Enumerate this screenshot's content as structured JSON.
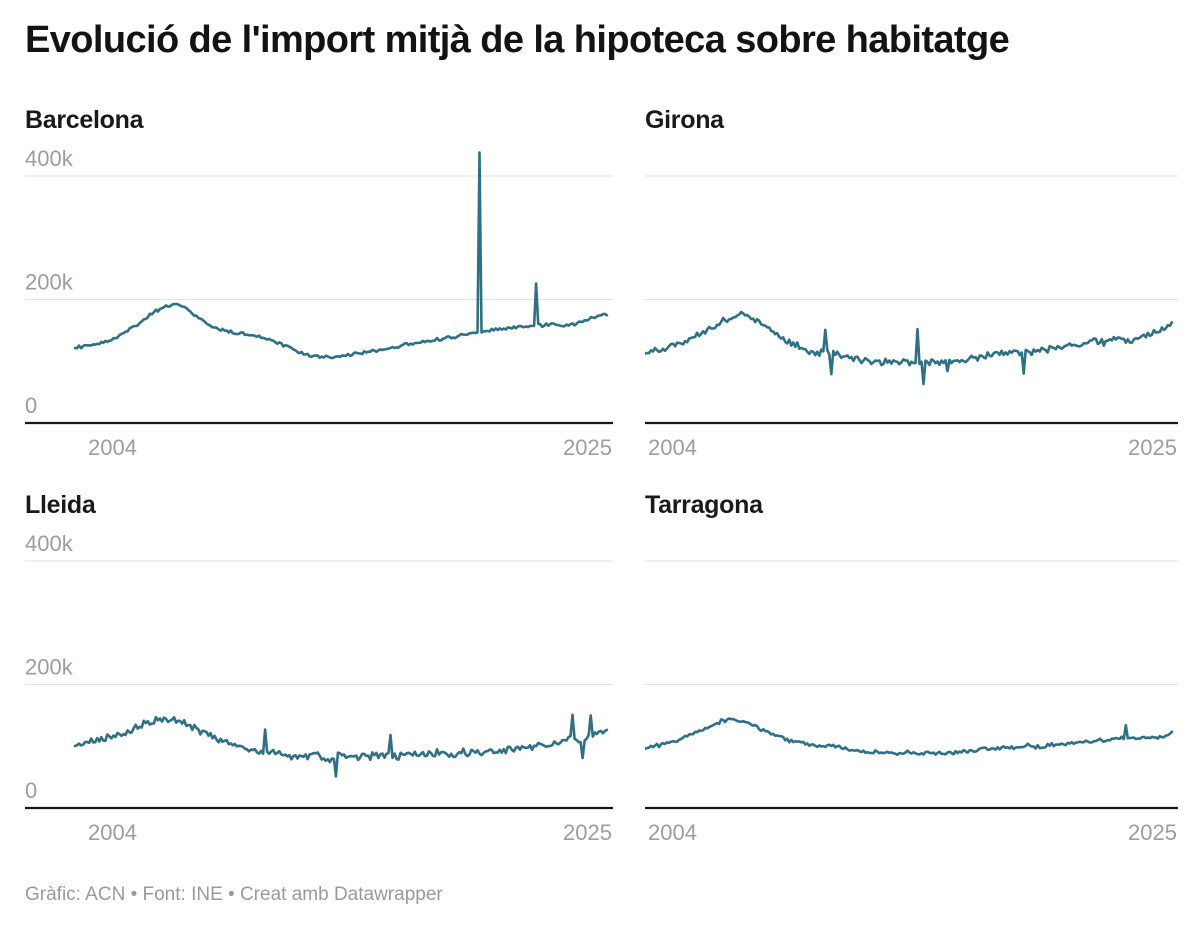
{
  "title": "Evolució de l'import mitjà de la hipoteca sobre habitatge",
  "footer": "Gràfic: ACN • Font: INE • Creat amb Datawrapper",
  "colors": {
    "line": "#2e7187",
    "grid": "#e2e2e2",
    "axis": "#18191a",
    "tick_label": "#9d9d9d",
    "title": "#131313",
    "panel_title": "#1a1a1a",
    "footer": "#9a9a9a"
  },
  "chart_data": {
    "type": "line",
    "layout": "small-multiples-2x2",
    "unit": "EUR (thousands)",
    "frequency": "monthly",
    "x_domain": [
      2003.33,
      2025.25
    ],
    "y_domain_k": [
      0,
      400
    ],
    "grid": true,
    "y_ticks": [
      {
        "value_k": 400,
        "label": "400k"
      },
      {
        "value_k": 200,
        "label": "200k"
      },
      {
        "value_k": 0,
        "label": "0"
      }
    ],
    "x_ticks": [
      {
        "value": 2004,
        "label": "2004"
      },
      {
        "value": 2025,
        "label": "2025"
      }
    ],
    "panels": [
      {
        "title": "Barcelona",
        "y_axis_labels": true,
        "seed": 11,
        "noise_k": 3.2,
        "trend_anchors_year_valuek": [
          [
            2003.3,
            122
          ],
          [
            2004,
            127
          ],
          [
            2004.7,
            133
          ],
          [
            2005.3,
            144
          ],
          [
            2006,
            162
          ],
          [
            2006.6,
            180
          ],
          [
            2007,
            188
          ],
          [
            2007.5,
            192
          ],
          [
            2007.9,
            186
          ],
          [
            2008.4,
            172
          ],
          [
            2008.8,
            160
          ],
          [
            2009.2,
            152
          ],
          [
            2009.8,
            147
          ],
          [
            2010.3,
            144
          ],
          [
            2010.8,
            140
          ],
          [
            2011.3,
            136
          ],
          [
            2011.9,
            126
          ],
          [
            2012.4,
            117
          ],
          [
            2013,
            110
          ],
          [
            2013.7,
            106
          ],
          [
            2014.3,
            108
          ],
          [
            2015,
            114
          ],
          [
            2015.7,
            117
          ],
          [
            2016.3,
            120
          ],
          [
            2017,
            127
          ],
          [
            2017.7,
            131
          ],
          [
            2018.3,
            135
          ],
          [
            2019,
            140
          ],
          [
            2019.7,
            146
          ],
          [
            2020.3,
            149
          ],
          [
            2021,
            152
          ],
          [
            2021.7,
            156
          ],
          [
            2022.3,
            158
          ],
          [
            2023,
            160
          ],
          [
            2023.6,
            157
          ],
          [
            2024,
            162
          ],
          [
            2024.6,
            170
          ],
          [
            2025.25,
            177
          ]
        ],
        "outlier_spikes_year_valuek": [
          [
            2020.02,
            438
          ],
          [
            2022.35,
            226
          ]
        ]
      },
      {
        "title": "Girona",
        "y_axis_labels": false,
        "seed": 23,
        "noise_k": 6.5,
        "trend_anchors_year_valuek": [
          [
            2003.3,
            113
          ],
          [
            2004,
            119
          ],
          [
            2004.7,
            127
          ],
          [
            2005.3,
            138
          ],
          [
            2005.9,
            150
          ],
          [
            2006.4,
            161
          ],
          [
            2006.9,
            170
          ],
          [
            2007.3,
            176
          ],
          [
            2007.7,
            172
          ],
          [
            2008.1,
            164
          ],
          [
            2008.6,
            150
          ],
          [
            2009,
            139
          ],
          [
            2009.5,
            128
          ],
          [
            2010,
            119
          ],
          [
            2010.5,
            114
          ],
          [
            2011,
            114
          ],
          [
            2011.5,
            109
          ],
          [
            2012,
            103
          ],
          [
            2012.5,
            99
          ],
          [
            2013,
            101
          ],
          [
            2013.5,
            96
          ],
          [
            2014,
            100
          ],
          [
            2014.5,
            98
          ],
          [
            2015,
            101
          ],
          [
            2015.5,
            97
          ],
          [
            2016,
            102
          ],
          [
            2016.5,
            100
          ],
          [
            2017,
            106
          ],
          [
            2017.5,
            109
          ],
          [
            2018,
            112
          ],
          [
            2018.5,
            114
          ],
          [
            2019,
            112
          ],
          [
            2019.5,
            116
          ],
          [
            2020,
            119
          ],
          [
            2020.5,
            122
          ],
          [
            2021,
            124
          ],
          [
            2021.5,
            127
          ],
          [
            2022,
            132
          ],
          [
            2022.5,
            129
          ],
          [
            2023,
            136
          ],
          [
            2023.5,
            133
          ],
          [
            2024,
            140
          ],
          [
            2024.5,
            146
          ],
          [
            2024.9,
            152
          ],
          [
            2025.25,
            160
          ]
        ],
        "outlier_spikes_year_valuek": [
          [
            2010.8,
            151
          ],
          [
            2011.05,
            79
          ],
          [
            2014.7,
            152
          ],
          [
            2014.95,
            63
          ],
          [
            2015.9,
            84
          ],
          [
            2019.1,
            80
          ]
        ]
      },
      {
        "title": "Lleida",
        "y_axis_labels": true,
        "seed": 37,
        "noise_k": 7.5,
        "trend_anchors_year_valuek": [
          [
            2003.3,
            101
          ],
          [
            2004,
            106
          ],
          [
            2004.7,
            113
          ],
          [
            2005.3,
            122
          ],
          [
            2005.9,
            131
          ],
          [
            2006.4,
            139
          ],
          [
            2006.9,
            147
          ],
          [
            2007.3,
            143
          ],
          [
            2007.8,
            137
          ],
          [
            2008.3,
            128
          ],
          [
            2008.8,
            120
          ],
          [
            2009.3,
            110
          ],
          [
            2009.8,
            103
          ],
          [
            2010.3,
            98
          ],
          [
            2010.8,
            93
          ],
          [
            2011.3,
            91
          ],
          [
            2011.8,
            87
          ],
          [
            2012.3,
            84
          ],
          [
            2012.8,
            82
          ],
          [
            2013.3,
            85
          ],
          [
            2013.8,
            80
          ],
          [
            2014.3,
            84
          ],
          [
            2014.8,
            82
          ],
          [
            2015.3,
            85
          ],
          [
            2015.8,
            83
          ],
          [
            2016.3,
            87
          ],
          [
            2016.8,
            84
          ],
          [
            2017.3,
            89
          ],
          [
            2017.8,
            86
          ],
          [
            2018.3,
            90
          ],
          [
            2018.8,
            87
          ],
          [
            2019.3,
            91
          ],
          [
            2019.8,
            88
          ],
          [
            2020.3,
            90
          ],
          [
            2020.8,
            93
          ],
          [
            2021.3,
            95
          ],
          [
            2021.8,
            97
          ],
          [
            2022.3,
            100
          ],
          [
            2022.8,
            104
          ],
          [
            2023.3,
            108
          ],
          [
            2023.8,
            111
          ],
          [
            2024.2,
            108
          ],
          [
            2024.7,
            118
          ],
          [
            2025.25,
            127
          ]
        ],
        "outlier_spikes_year_valuek": [
          [
            2011.2,
            127
          ],
          [
            2014.05,
            51
          ],
          [
            2016.35,
            118
          ],
          [
            2023.85,
            151
          ],
          [
            2024.25,
            81
          ],
          [
            2024.6,
            150
          ]
        ]
      },
      {
        "title": "Tarragona",
        "y_axis_labels": false,
        "seed": 53,
        "noise_k": 4,
        "trend_anchors_year_valuek": [
          [
            2003.3,
            97
          ],
          [
            2004,
            102
          ],
          [
            2004.7,
            110
          ],
          [
            2005.3,
            119
          ],
          [
            2005.9,
            129
          ],
          [
            2006.4,
            139
          ],
          [
            2006.8,
            145
          ],
          [
            2007.2,
            142
          ],
          [
            2007.7,
            136
          ],
          [
            2008.2,
            128
          ],
          [
            2008.7,
            119
          ],
          [
            2009.2,
            111
          ],
          [
            2009.7,
            106
          ],
          [
            2010.2,
            103
          ],
          [
            2010.7,
            100
          ],
          [
            2011.2,
            102
          ],
          [
            2011.7,
            96
          ],
          [
            2012.2,
            92
          ],
          [
            2012.7,
            90
          ],
          [
            2013.2,
            92
          ],
          [
            2013.7,
            88
          ],
          [
            2014.2,
            90
          ],
          [
            2014.7,
            87
          ],
          [
            2015.2,
            90
          ],
          [
            2015.7,
            88
          ],
          [
            2016.2,
            91
          ],
          [
            2016.7,
            90
          ],
          [
            2017.2,
            94
          ],
          [
            2017.7,
            96
          ],
          [
            2018.2,
            99
          ],
          [
            2018.7,
            97
          ],
          [
            2019.2,
            101
          ],
          [
            2019.7,
            99
          ],
          [
            2020.2,
            102
          ],
          [
            2020.7,
            104
          ],
          [
            2021.2,
            106
          ],
          [
            2021.7,
            107
          ],
          [
            2022.2,
            109
          ],
          [
            2022.7,
            111
          ],
          [
            2023.2,
            114
          ],
          [
            2023.7,
            111
          ],
          [
            2024.2,
            114
          ],
          [
            2024.7,
            112
          ],
          [
            2025.25,
            121
          ]
        ],
        "outlier_spikes_year_valuek": [
          [
            2023.35,
            134
          ]
        ]
      }
    ]
  }
}
